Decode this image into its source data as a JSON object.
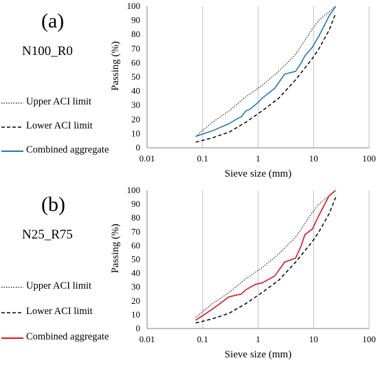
{
  "panels": [
    {
      "label": "(a)",
      "name": "N100_R0",
      "legend": [
        {
          "label": "Upper ACI limit",
          "style": "dotted",
          "color": "#000000"
        },
        {
          "label": "Lower ACI limit",
          "style": "dashed",
          "color": "#000000"
        },
        {
          "label": "Combined aggregate",
          "style": "solid",
          "color": "#1f77b4"
        }
      ]
    },
    {
      "label": "(b)",
      "name": "N25_R75",
      "legend": [
        {
          "label": "Upper ACI limit",
          "style": "dotted",
          "color": "#000000"
        },
        {
          "label": "Lower ACI limit",
          "style": "dashed",
          "color": "#000000"
        },
        {
          "label": "Combined aggregate",
          "style": "solid",
          "color": "#e3121b"
        }
      ]
    }
  ],
  "chart_data": [
    {
      "type": "line",
      "xscale": "log",
      "xlim": [
        0.01,
        100
      ],
      "ylim": [
        0,
        100
      ],
      "xlabel": "Sieve size (mm)",
      "ylabel": "Passing (%)",
      "xticks": [
        "0.01",
        "0.1",
        "1",
        "10",
        "100"
      ],
      "yticks": [
        "0",
        "10",
        "20",
        "30",
        "40",
        "50",
        "60",
        "70",
        "80",
        "90",
        "100"
      ],
      "grid": "vertical",
      "series": [
        {
          "name": "Upper ACI limit",
          "style": "dotted",
          "color": "#000000",
          "x": [
            0.075,
            0.15,
            0.3,
            0.6,
            1.18,
            2.36,
            4.75,
            9.5,
            12.5,
            19,
            25
          ],
          "y": [
            8,
            18,
            26,
            36,
            44,
            54,
            66,
            84,
            90,
            96,
            100
          ]
        },
        {
          "name": "Lower ACI limit",
          "style": "dashed",
          "color": "#000000",
          "x": [
            0.075,
            0.15,
            0.3,
            0.6,
            1.18,
            2.36,
            4.75,
            9.5,
            12.5,
            19,
            25
          ],
          "y": [
            4,
            7,
            11,
            18,
            26,
            35,
            48,
            63,
            70,
            83,
            95
          ]
        },
        {
          "name": "Combined aggregate",
          "style": "solid",
          "color": "#1f77b4",
          "x": [
            0.075,
            0.15,
            0.3,
            0.4,
            0.5,
            0.6,
            0.7,
            1.0,
            1.18,
            2,
            3,
            4.75,
            6,
            7,
            9.5,
            12.5,
            19,
            25
          ],
          "y": [
            8,
            12,
            17,
            20,
            22,
            26,
            27,
            32,
            35,
            42,
            52,
            54,
            60,
            65,
            71,
            79,
            93,
            100
          ]
        }
      ]
    },
    {
      "type": "line",
      "xscale": "log",
      "xlim": [
        0.01,
        100
      ],
      "ylim": [
        0,
        100
      ],
      "xlabel": "Sieve size (mm)",
      "ylabel": "Passing (%)",
      "xticks": [
        "0.01",
        "0.1",
        "1",
        "10",
        "100"
      ],
      "yticks": [
        "0",
        "10",
        "20",
        "30",
        "40",
        "50",
        "60",
        "70",
        "80",
        "90",
        "100"
      ],
      "grid": "vertical",
      "series": [
        {
          "name": "Upper ACI limit",
          "style": "dotted",
          "color": "#000000",
          "x": [
            0.075,
            0.15,
            0.3,
            0.6,
            1.18,
            2.36,
            4.75,
            9.5,
            12.5,
            19,
            25
          ],
          "y": [
            8,
            18,
            26,
            36,
            44,
            54,
            66,
            84,
            90,
            96,
            100
          ]
        },
        {
          "name": "Lower ACI limit",
          "style": "dashed",
          "color": "#000000",
          "x": [
            0.075,
            0.15,
            0.3,
            0.6,
            1.18,
            2.36,
            4.75,
            9.5,
            12.5,
            19,
            25
          ],
          "y": [
            4,
            7,
            11,
            18,
            26,
            35,
            48,
            63,
            70,
            83,
            95
          ]
        },
        {
          "name": "Combined aggregate",
          "style": "solid",
          "color": "#e3121b",
          "x": [
            0.075,
            0.15,
            0.3,
            0.5,
            0.6,
            0.9,
            1.18,
            2,
            3,
            4.75,
            6,
            7,
            9.5,
            12.5,
            19,
            25
          ],
          "y": [
            6,
            14,
            23,
            25,
            28,
            32,
            33,
            38,
            48,
            51,
            60,
            68,
            72,
            82,
            96,
            100
          ]
        }
      ]
    }
  ]
}
